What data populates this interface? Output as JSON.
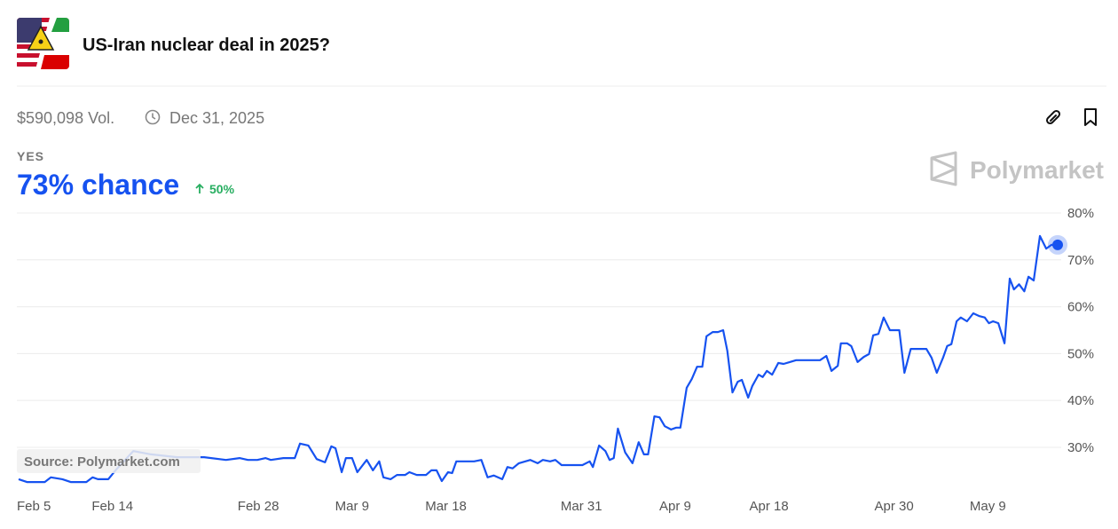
{
  "header": {
    "title": "US-Iran nuclear deal in 2025?",
    "volume": "$590,098 Vol.",
    "end_date": "Dec 31, 2025",
    "outcome": "YES",
    "chance": "73% chance",
    "change": "50%",
    "brand": "Polymarket"
  },
  "chart_data": {
    "type": "line",
    "color": "#1652f0",
    "source": "Source: Polymarket.com",
    "grid": true,
    "x": [
      0,
      0.8,
      2.5,
      3.1,
      4.2,
      5.0,
      6.5,
      7.1,
      7.6,
      8.6,
      9.3,
      11.0,
      12.7,
      15.2,
      17.8,
      19.9,
      21.2,
      22.0,
      22.9,
      23.7,
      24.2,
      25.4,
      26.5,
      27.0,
      27.8,
      28.6,
      29.4,
      30.0,
      30.4,
      31.0,
      31.4,
      32.0,
      32.5,
      33.4,
      34.0,
      34.6,
      35.0,
      35.7,
      36.3,
      37.1,
      37.5,
      38.2,
      39.1,
      39.6,
      40.1,
      40.6,
      41.2,
      41.6,
      42.0,
      43.7,
      44.4,
      45.0,
      45.6,
      46.4,
      46.9,
      47.4,
      48.0,
      49.1,
      49.8,
      50.3,
      51.0,
      51.5,
      52.1,
      54.1,
      54.8,
      55.1,
      55.7,
      56.3,
      56.7,
      57.1,
      57.5,
      58.2,
      58.9,
      59.5,
      60.0,
      60.4,
      61.0,
      61.5,
      62.0,
      62.6,
      63.1,
      63.5,
      64.1,
      64.6,
      65.1,
      65.6,
      66.0,
      66.6,
      67.1,
      67.6,
      68.0,
      68.5,
      69.0,
      69.4,
      70.0,
      70.4,
      71.0,
      71.4,
      71.8,
      72.3,
      72.9,
      73.4,
      74.0,
      74.6,
      76.9,
      77.5,
      78.0,
      78.6,
      78.9,
      79.5,
      79.9,
      80.5,
      81.1,
      81.6,
      82.0,
      82.5,
      83.0,
      83.6,
      84.5,
      85.0,
      85.6,
      87.1,
      87.6,
      88.1,
      88.7,
      89.1,
      89.5,
      90.0,
      90.4,
      91.0,
      91.6,
      92.2,
      92.7,
      93.1,
      93.5,
      94.0,
      94.6,
      95.1,
      95.5,
      96.0,
      96.5,
      96.9,
      97.4,
      98.0,
      98.6,
      99.1,
      99.7
    ],
    "values": [
      23.2,
      22.6,
      22.6,
      23.6,
      23.2,
      22.6,
      22.6,
      23.6,
      23.2,
      23.2,
      25.1,
      29.2,
      28.5,
      27.9,
      27.9,
      27.3,
      27.7,
      27.3,
      27.3,
      27.7,
      27.3,
      27.7,
      27.7,
      30.8,
      30.4,
      27.5,
      26.8,
      30.2,
      29.8,
      24.7,
      27.7,
      27.7,
      24.7,
      27.3,
      25.1,
      27.0,
      23.6,
      23.2,
      24.1,
      24.1,
      24.7,
      24.1,
      24.1,
      25.1,
      25.1,
      22.8,
      24.7,
      24.5,
      27.0,
      27.0,
      27.3,
      23.6,
      24.0,
      23.2,
      25.8,
      25.5,
      26.6,
      27.3,
      26.6,
      27.3,
      27.0,
      27.3,
      26.2,
      26.2,
      27.0,
      25.8,
      30.4,
      29.2,
      27.3,
      27.7,
      34.0,
      28.9,
      26.6,
      31.1,
      28.5,
      28.5,
      36.6,
      36.4,
      34.5,
      33.8,
      34.2,
      34.2,
      42.7,
      44.6,
      47.2,
      47.2,
      53.7,
      54.6,
      54.6,
      55.0,
      50.6,
      41.7,
      44.0,
      44.4,
      40.6,
      43.1,
      45.5,
      45.0,
      46.3,
      45.5,
      48.0,
      47.8,
      48.2,
      48.6,
      48.6,
      49.5,
      46.3,
      47.4,
      52.2,
      52.2,
      51.6,
      48.2,
      49.3,
      49.9,
      53.9,
      54.2,
      57.7,
      55.0,
      55.0,
      45.9,
      51.0,
      51.0,
      49.1,
      45.9,
      49.1,
      51.6,
      52.0,
      56.9,
      57.7,
      56.9,
      58.6,
      58.0,
      57.7,
      56.5,
      56.9,
      56.5,
      52.2,
      66.0,
      63.7,
      64.8,
      63.3,
      66.4,
      65.6,
      75.1,
      72.4,
      73.2,
      73.2
    ],
    "xlim": [
      0,
      99.7
    ],
    "xticks": [
      {
        "value": 0,
        "label": "Feb 5"
      },
      {
        "value": 9,
        "label": "Feb 14"
      },
      {
        "value": 23,
        "label": "Feb 28"
      },
      {
        "value": 32,
        "label": "Mar 9"
      },
      {
        "value": 41,
        "label": "Mar 18"
      },
      {
        "value": 54,
        "label": "Mar 31"
      },
      {
        "value": 63,
        "label": "Apr 9"
      },
      {
        "value": 72,
        "label": "Apr 18"
      },
      {
        "value": 84,
        "label": "Apr 30"
      },
      {
        "value": 93,
        "label": "May 9"
      }
    ],
    "ylim": [
      21,
      80
    ],
    "yticks": [
      {
        "value": 30,
        "label": "30%"
      },
      {
        "value": 40,
        "label": "40%"
      },
      {
        "value": 50,
        "label": "50%"
      },
      {
        "value": 60,
        "label": "60%"
      },
      {
        "value": 70,
        "label": "70%"
      },
      {
        "value": 80,
        "label": "80%"
      }
    ]
  }
}
